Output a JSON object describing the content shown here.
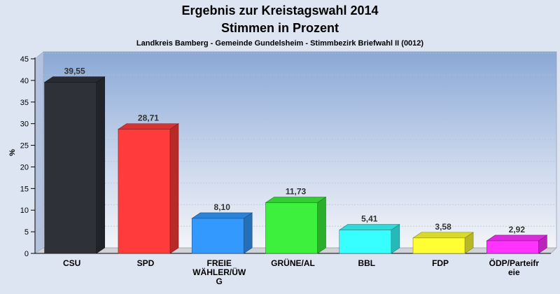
{
  "chart_data": {
    "type": "bar",
    "title": "Ergebnis zur Kreistagswahl 2014",
    "title_line2": "Stimmen in Prozent",
    "subtitle": "Landkreis Bamberg - Gemeinde Gundelsheim - Stimmbezirk Briefwahl II (0012)",
    "xlabel": "",
    "ylabel": "%",
    "ylim": [
      0,
      45
    ],
    "yticks": [
      0,
      5,
      10,
      15,
      20,
      25,
      30,
      35,
      40,
      45
    ],
    "grid": true,
    "categories": [
      "CSU",
      "SPD",
      "FREIE WÄHLER/ÜWG",
      "GRÜNE/AL",
      "BBL",
      "FDP",
      "ÖDP/Parteifreie"
    ],
    "category_label_lines": [
      [
        "CSU"
      ],
      [
        "SPD"
      ],
      [
        "FREIE",
        "WÄHLER/ÜW",
        "G"
      ],
      [
        "GRÜNE/AL"
      ],
      [
        "BBL"
      ],
      [
        "FDP"
      ],
      [
        "ÖDP/Parteifr",
        "eie"
      ]
    ],
    "values": [
      39.55,
      28.71,
      8.1,
      11.73,
      5.41,
      3.58,
      2.92
    ],
    "value_labels": [
      "39,55",
      "28,71",
      "8,10",
      "11,73",
      "5,41",
      "3,58",
      "2,92"
    ],
    "colors": [
      "#2e3138",
      "#ff3b3b",
      "#3399ff",
      "#3df03d",
      "#38ffff",
      "#ffff33",
      "#ff33ff"
    ]
  }
}
